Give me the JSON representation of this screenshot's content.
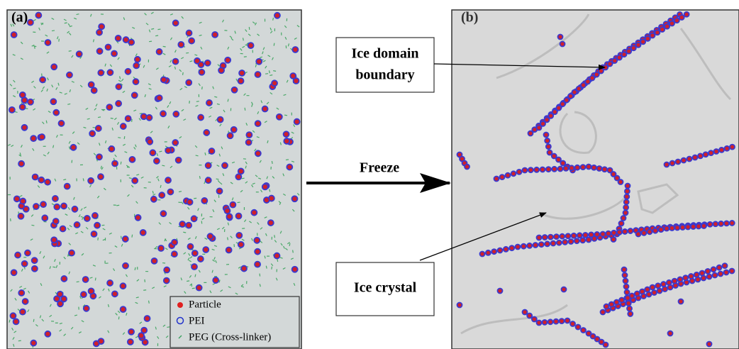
{
  "panel_a": {
    "label": "(a)",
    "legend": [
      "Particle",
      "PEI",
      "PEG (Cross-linker)"
    ]
  },
  "panel_b": {
    "label": "(b)"
  },
  "arrow": {
    "label": "Freeze"
  },
  "callouts": {
    "boundary": [
      "Ice domain",
      "boundary"
    ],
    "crystal": "Ice crystal"
  }
}
